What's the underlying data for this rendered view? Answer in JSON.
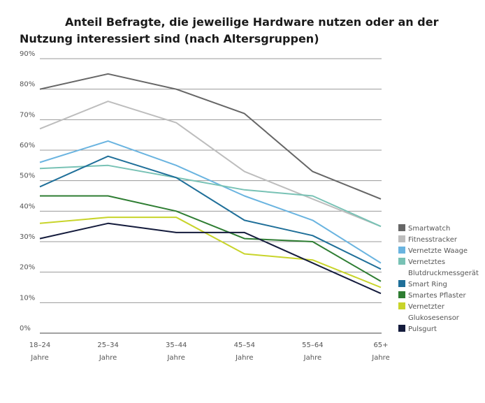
{
  "chart_data": {
    "type": "line",
    "title_lines": [
      "Anteil Befragte, die jeweilige Hardware nutzen oder an der",
      "Nutzung interessiert sind (nach Altersgruppen)"
    ],
    "categories": [
      [
        "18–24",
        "Jahre"
      ],
      [
        "25–34",
        "Jahre"
      ],
      [
        "35–44",
        "Jahre"
      ],
      [
        "45–54",
        "Jahre"
      ],
      [
        "55–64",
        "Jahre"
      ],
      [
        "65+",
        "Jahre"
      ]
    ],
    "yticks": [
      "0%",
      "10%",
      "20%",
      "30%",
      "40%",
      "50%",
      "60%",
      "70%",
      "80%",
      "90%"
    ],
    "ylim": [
      0,
      90
    ],
    "grid": true,
    "legend_position": "right",
    "series": [
      {
        "name": "Smartwatch",
        "color": "#666666",
        "values": [
          80,
          85,
          80,
          72,
          53,
          44
        ]
      },
      {
        "name": "Fitnesstracker",
        "color": "#bdbdbd",
        "values": [
          67,
          76,
          69,
          53,
          44,
          35
        ]
      },
      {
        "name": "Vernetzte Waage",
        "color": "#6ab4e0",
        "values": [
          56,
          63,
          55,
          45,
          37,
          23
        ]
      },
      {
        "name": "Vernetztes Blutdruckmessgerät",
        "legend_lines": [
          "Vernetztes",
          "Blutdruckmessgerät"
        ],
        "color": "#78c2b5",
        "values": [
          54,
          55,
          51,
          47,
          45,
          35
        ]
      },
      {
        "name": "Smart Ring",
        "color": "#1f6f99",
        "values": [
          48,
          58,
          51,
          37,
          32,
          21
        ]
      },
      {
        "name": "Smartes Pflaster",
        "color": "#2e7d32",
        "values": [
          45,
          45,
          40,
          31,
          30,
          17
        ]
      },
      {
        "name": "Vernetzter Glukosesensor",
        "legend_lines": [
          "Vernetzter",
          "Glukosesensor"
        ],
        "color": "#c8d42a",
        "values": [
          36,
          38,
          38,
          26,
          24,
          15
        ]
      },
      {
        "name": "Pulsgurt",
        "color": "#141b3c",
        "values": [
          31,
          36,
          33,
          33,
          23,
          13
        ]
      }
    ]
  }
}
